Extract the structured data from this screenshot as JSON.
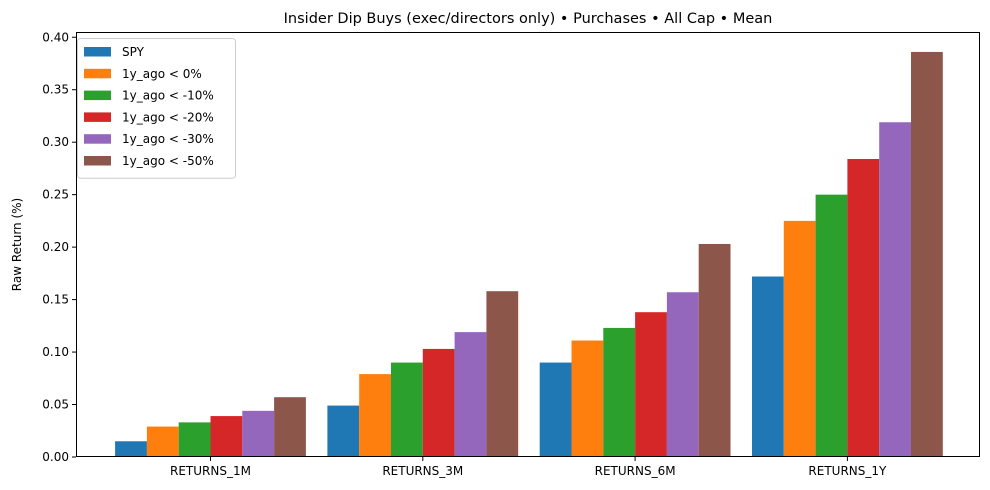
{
  "chart_data": {
    "type": "bar",
    "title": "Insider Dip Buys (exec/directors only) • Purchases • All Cap • Mean",
    "xlabel": "",
    "ylabel": "Raw Return (%)",
    "ylim": [
      0,
      0.405
    ],
    "yticks": [
      "0.00",
      "0.05",
      "0.10",
      "0.15",
      "0.20",
      "0.25",
      "0.30",
      "0.35",
      "0.40"
    ],
    "ytick_values": [
      0,
      0.05,
      0.1,
      0.15,
      0.2,
      0.25,
      0.3,
      0.35,
      0.4
    ],
    "categories": [
      "RETURNS_1M",
      "RETURNS_3M",
      "RETURNS_6M",
      "RETURNS_1Y"
    ],
    "legend_position": "upper-left",
    "grid": false,
    "series": [
      {
        "name": "SPY",
        "color": "#1f77b4",
        "values": [
          0.015,
          0.049,
          0.09,
          0.172
        ]
      },
      {
        "name": "1y_ago < 0%",
        "color": "#ff7f0e",
        "values": [
          0.029,
          0.079,
          0.111,
          0.225
        ]
      },
      {
        "name": "1y_ago < -10%",
        "color": "#2ca02c",
        "values": [
          0.033,
          0.09,
          0.123,
          0.25
        ]
      },
      {
        "name": "1y_ago < -20%",
        "color": "#d62728",
        "values": [
          0.039,
          0.103,
          0.138,
          0.284
        ]
      },
      {
        "name": "1y_ago < -30%",
        "color": "#9467bd",
        "values": [
          0.044,
          0.119,
          0.157,
          0.319
        ]
      },
      {
        "name": "1y_ago < -50%",
        "color": "#8c564b",
        "values": [
          0.057,
          0.158,
          0.203,
          0.386
        ]
      }
    ]
  }
}
